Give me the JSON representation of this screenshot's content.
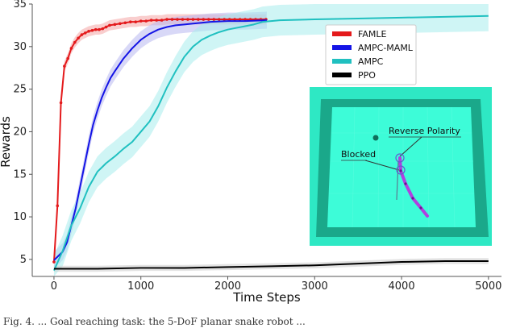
{
  "chart_data": {
    "type": "line",
    "title": "",
    "xlabel": "Time Steps",
    "ylabel": "Rewards",
    "xlim": [
      -250,
      5150
    ],
    "ylim": [
      3,
      35
    ],
    "xticks": [
      0,
      1000,
      2000,
      3000,
      4000,
      5000
    ],
    "yticks": [
      5,
      10,
      15,
      20,
      25,
      30,
      35
    ],
    "grid": false,
    "legend_position": "upper-right",
    "series": [
      {
        "name": "FAMLE",
        "color": "#e41a1c",
        "band_color": "#f4a6a6",
        "markers": true,
        "x": [
          0,
          40,
          80,
          120,
          160,
          200,
          240,
          280,
          320,
          360,
          400,
          440,
          480,
          520,
          560,
          600,
          640,
          700,
          760,
          820,
          880,
          940,
          1000,
          1060,
          1120,
          1180,
          1240,
          1300,
          1360,
          1420,
          1480,
          1540,
          1600,
          1660,
          1720,
          1780,
          1840,
          1900,
          1960,
          2020,
          2080,
          2140,
          2200,
          2260,
          2320,
          2380,
          2440
        ],
        "y": [
          4.7,
          11.3,
          23.4,
          27.7,
          28.6,
          29.8,
          30.5,
          31.0,
          31.4,
          31.6,
          31.8,
          31.9,
          32.0,
          32.0,
          32.1,
          32.3,
          32.5,
          32.6,
          32.7,
          32.8,
          32.9,
          32.9,
          33.0,
          33.0,
          33.1,
          33.1,
          33.1,
          33.2,
          33.2,
          33.2,
          33.2,
          33.2,
          33.2,
          33.2,
          33.2,
          33.2,
          33.2,
          33.2,
          33.2,
          33.2,
          33.2,
          33.2,
          33.2,
          33.2,
          33.2,
          33.2,
          33.2
        ],
        "band": 0.6
      },
      {
        "name": "AMPC-MAML",
        "color": "#1414e6",
        "band_color": "#b8b8f0",
        "markers": false,
        "x": [
          0,
          50,
          100,
          150,
          200,
          250,
          300,
          350,
          400,
          450,
          500,
          550,
          600,
          650,
          700,
          800,
          900,
          1000,
          1100,
          1200,
          1300,
          1400,
          1500,
          1600,
          1700,
          1800,
          2000,
          2200,
          2450
        ],
        "y": [
          4.9,
          5.4,
          5.9,
          7.0,
          9.0,
          11.0,
          13.5,
          16.0,
          18.5,
          20.8,
          22.5,
          24.0,
          25.2,
          26.3,
          27.1,
          28.6,
          29.8,
          30.8,
          31.5,
          32.0,
          32.3,
          32.5,
          32.6,
          32.7,
          32.8,
          32.9,
          33.0,
          33.0,
          33.1
        ],
        "band": 1.0
      },
      {
        "name": "AMPC",
        "color": "#20c0c0",
        "band_color": "#a8ecec",
        "markers": false,
        "x": [
          0,
          100,
          200,
          300,
          400,
          500,
          600,
          700,
          800,
          900,
          1000,
          1100,
          1200,
          1300,
          1400,
          1500,
          1600,
          1700,
          1800,
          1900,
          2000,
          2100,
          2200,
          2300,
          2400,
          2600,
          3000,
          3500,
          4000,
          4500,
          5000
        ],
        "y": [
          3.7,
          6.0,
          9.0,
          11.0,
          13.5,
          15.3,
          16.3,
          17.1,
          18.0,
          18.8,
          20.0,
          21.2,
          23.0,
          25.2,
          27.1,
          28.8,
          30.0,
          30.8,
          31.3,
          31.7,
          32.0,
          32.2,
          32.4,
          32.6,
          32.9,
          33.1,
          33.2,
          33.3,
          33.4,
          33.5,
          33.6
        ],
        "band": 1.8
      },
      {
        "name": "PPO",
        "color": "#000000",
        "band_color": "#cccccc",
        "markers": false,
        "x": [
          0,
          500,
          1000,
          1500,
          2000,
          2500,
          3000,
          3500,
          4000,
          4500,
          5000
        ],
        "y": [
          3.9,
          3.9,
          4.0,
          4.0,
          4.1,
          4.2,
          4.3,
          4.5,
          4.7,
          4.8,
          4.8
        ],
        "band": 0.35
      }
    ],
    "inset_labels": {
      "reverse_polarity": "Reverse Polarity",
      "blocked": "Blocked"
    }
  },
  "inset_colors": {
    "background": "#2ee8c4",
    "wall": "#1aa88a",
    "floor": "#3dfcd8",
    "robot": "#b040e0"
  },
  "caption": "Fig. 4.   ... Goal reaching task: the 5-DoF planar snake robot ..."
}
